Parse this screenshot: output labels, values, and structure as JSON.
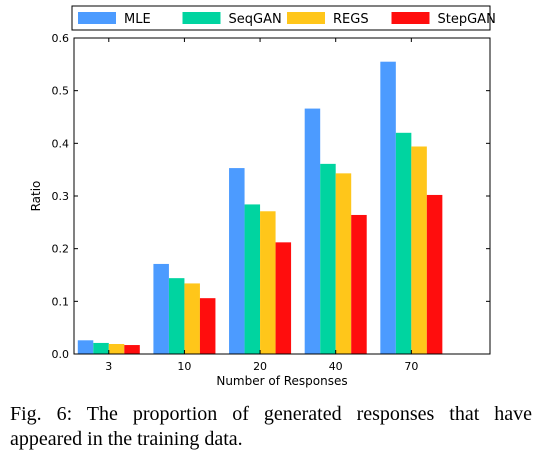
{
  "chart_data": {
    "type": "bar",
    "title": "",
    "xlabel": "Number of Responses",
    "ylabel": "Ratio",
    "categories": [
      "3",
      "10",
      "20",
      "40",
      "70"
    ],
    "ylim": [
      0,
      0.6
    ],
    "yticks": [
      "0.0",
      "0.1",
      "0.2",
      "0.3",
      "0.4",
      "0.5",
      "0.6"
    ],
    "legend_position": "top",
    "grid": false,
    "series": [
      {
        "name": "MLE",
        "color": "#4c9bff",
        "values": [
          0.026,
          0.171,
          0.353,
          0.466,
          0.555
        ]
      },
      {
        "name": "SeqGAN",
        "color": "#00d4a0",
        "values": [
          0.021,
          0.144,
          0.284,
          0.361,
          0.42
        ]
      },
      {
        "name": "REGS",
        "color": "#ffc61a",
        "values": [
          0.019,
          0.134,
          0.271,
          0.343,
          0.394
        ]
      },
      {
        "name": "StepGAN",
        "color": "#ff0d0d",
        "values": [
          0.017,
          0.106,
          0.212,
          0.264,
          0.302
        ]
      }
    ]
  },
  "caption": {
    "line1": "Fig. 6: The proportion of generated responses that have",
    "line2": "appeared in the training data."
  }
}
